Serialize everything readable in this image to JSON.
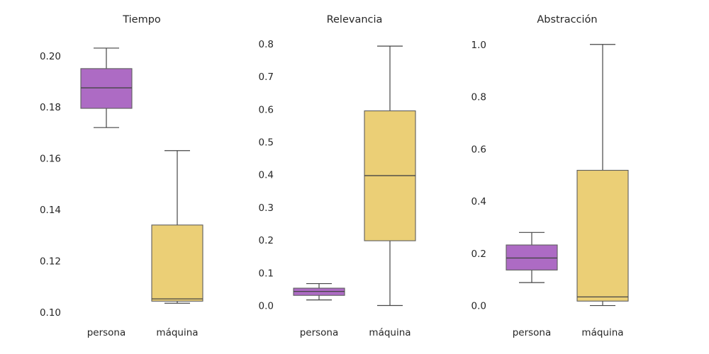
{
  "chart_data": [
    {
      "type": "box",
      "title": "Tiempo",
      "categories": [
        "persona",
        "máquina"
      ],
      "yticks": [
        "0.10",
        "0.12",
        "0.14",
        "0.16",
        "0.18",
        "0.20"
      ],
      "ylim": [
        0.0975,
        0.2085
      ],
      "boxes": [
        {
          "min": 0.172,
          "q1": 0.1795,
          "median": 0.1875,
          "q3": 0.195,
          "max": 0.203
        },
        {
          "min": 0.1035,
          "q1": 0.1043,
          "median": 0.1052,
          "q3": 0.134,
          "max": 0.163
        }
      ]
    },
    {
      "type": "box",
      "title": "Relevancia",
      "categories": [
        "persona",
        "máquina"
      ],
      "yticks": [
        "0.0",
        "0.1",
        "0.2",
        "0.3",
        "0.4",
        "0.5",
        "0.6",
        "0.7",
        "0.8"
      ],
      "ylim": [
        -0.04,
        0.83
      ],
      "boxes": [
        {
          "min": 0.017,
          "q1": 0.031,
          "median": 0.043,
          "q3": 0.053,
          "max": 0.067
        },
        {
          "min": 0.0,
          "q1": 0.198,
          "median": 0.397,
          "q3": 0.595,
          "max": 0.793
        }
      ]
    },
    {
      "type": "box",
      "title": "Abstracción",
      "categories": [
        "persona",
        "máquina"
      ],
      "yticks": [
        "0.0",
        "0.2",
        "0.4",
        "0.6",
        "0.8",
        "1.0"
      ],
      "ylim": [
        -0.05,
        1.04
      ],
      "boxes": [
        {
          "min": 0.088,
          "q1": 0.136,
          "median": 0.182,
          "q3": 0.232,
          "max": 0.28
        },
        {
          "min": 0.0,
          "q1": 0.017,
          "median": 0.033,
          "q3": 0.518,
          "max": 1.0
        }
      ]
    }
  ],
  "colors": {
    "persona": "#ad6bc4",
    "maquina": "#ebcf76",
    "line": "#454545",
    "text": "#262626"
  }
}
